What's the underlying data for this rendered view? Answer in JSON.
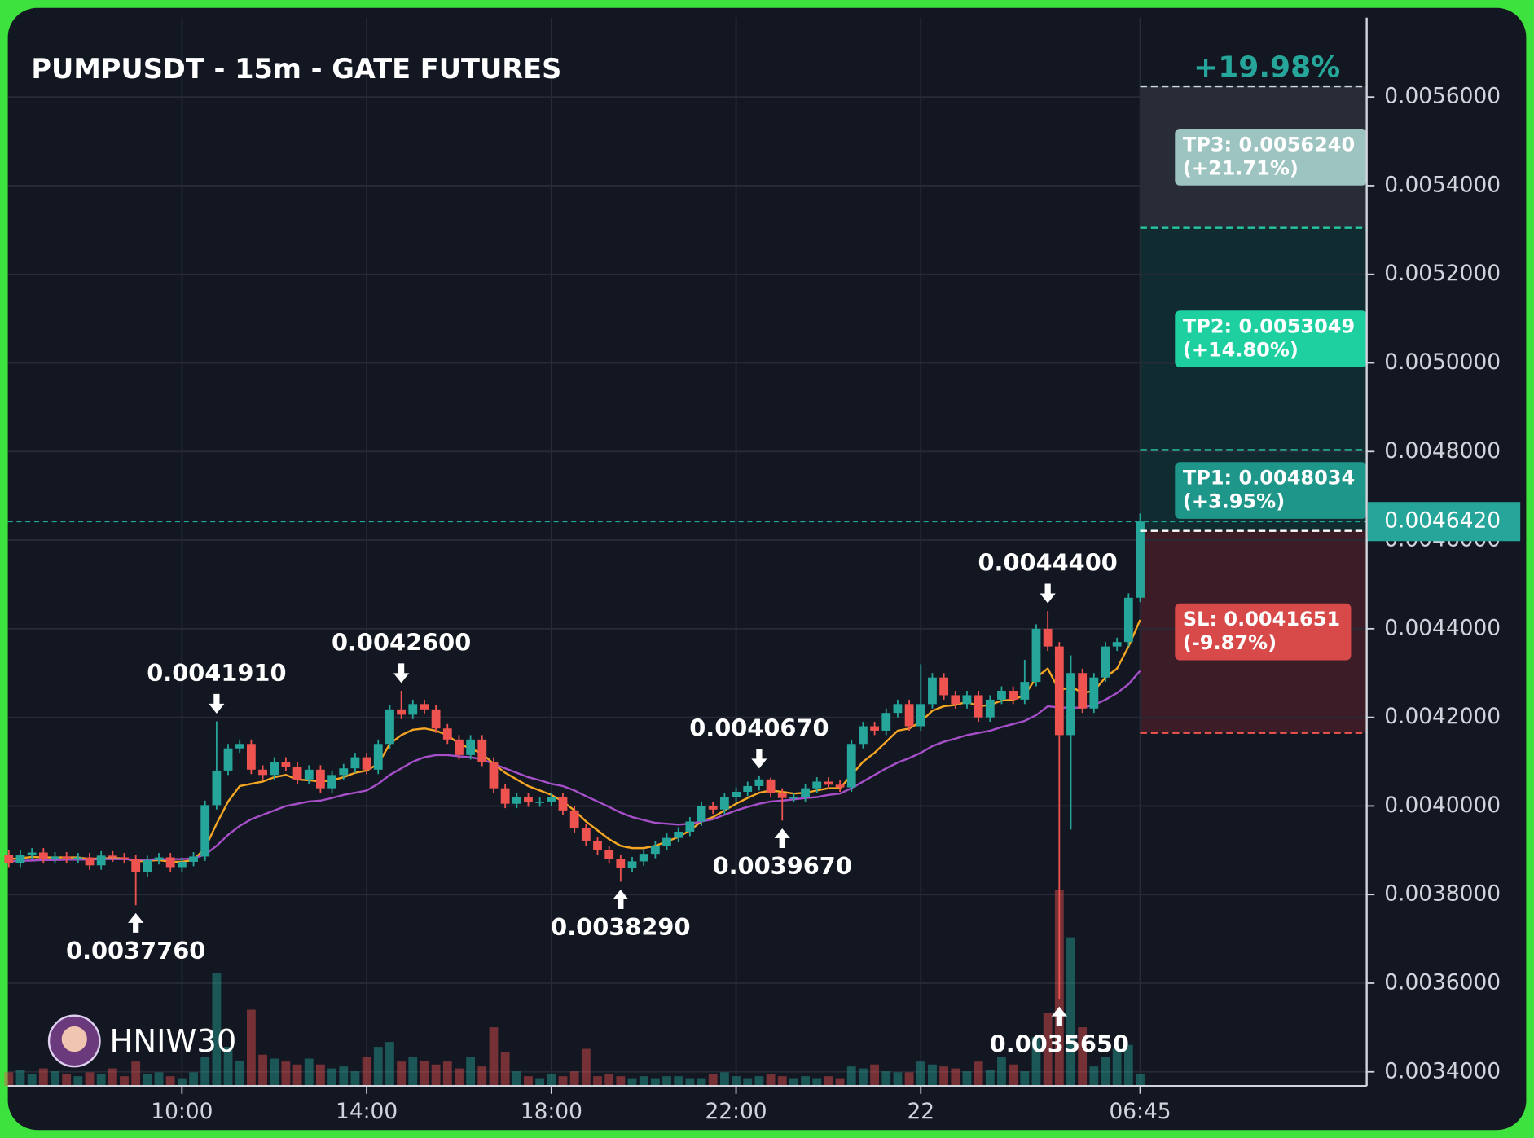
{
  "chart_data": {
    "type": "candlestick",
    "title": "PUMPUSDT - 15m - GATE FUTURES",
    "watermark": "HNIW30",
    "up_color": "#26a69a",
    "down_color": "#ef5350",
    "grid": true,
    "ylim": [
      0.003368,
      0.005779
    ],
    "yticks": [
      {
        "value": 0.0034,
        "label": "0.0034000"
      },
      {
        "value": 0.0036,
        "label": "0.0036000"
      },
      {
        "value": 0.0038,
        "label": "0.0038000"
      },
      {
        "value": 0.004,
        "label": "0.0040000"
      },
      {
        "value": 0.0042,
        "label": "0.0042000"
      },
      {
        "value": 0.0044,
        "label": "0.0044000"
      },
      {
        "value": 0.0046,
        "label": "0.0046000"
      },
      {
        "value": 0.0048,
        "label": "0.0048000"
      },
      {
        "value": 0.005,
        "label": "0.0050000"
      },
      {
        "value": 0.0052,
        "label": "0.0052000"
      },
      {
        "value": 0.0054,
        "label": "0.0054000"
      },
      {
        "value": 0.0056,
        "label": "0.0056000"
      }
    ],
    "categories": [
      null,
      null,
      null,
      null,
      null,
      null,
      null,
      null,
      null,
      null,
      null,
      null,
      null,
      null,
      null,
      "10:00",
      null,
      null,
      null,
      null,
      null,
      null,
      null,
      null,
      null,
      null,
      null,
      null,
      null,
      null,
      null,
      "14:00",
      null,
      null,
      null,
      null,
      null,
      null,
      null,
      null,
      null,
      null,
      null,
      null,
      null,
      null,
      null,
      "18:00",
      null,
      null,
      null,
      null,
      null,
      null,
      null,
      null,
      null,
      null,
      null,
      null,
      null,
      null,
      null,
      "22:00",
      null,
      null,
      null,
      null,
      null,
      null,
      null,
      null,
      null,
      null,
      null,
      null,
      null,
      null,
      null,
      "22",
      null,
      null,
      null,
      null,
      null,
      null,
      null,
      null,
      null,
      null,
      null,
      null,
      null,
      null,
      null,
      null,
      null,
      null,
      "06:45"
    ],
    "open": [
      0.00389,
      0.003872,
      0.00389,
      0.003895,
      0.00388,
      0.003886,
      0.003882,
      0.003884,
      0.003866,
      0.003888,
      0.003884,
      0.00388,
      0.00385,
      0.003878,
      0.003884,
      0.003862,
      0.003874,
      0.003886,
      0.004002,
      0.00408,
      0.00413,
      0.00414,
      0.004082,
      0.00407,
      0.0041,
      0.004088,
      0.00406,
      0.004082,
      0.00404,
      0.00407,
      0.004085,
      0.00411,
      0.004082,
      0.00414,
      0.004218,
      0.004206,
      0.00423,
      0.004218,
      0.004175,
      0.00415,
      0.004115,
      0.00415,
      0.0041,
      0.00404,
      0.004005,
      0.00402,
      0.004008,
      0.00401,
      0.00402,
      0.00399,
      0.00395,
      0.00392,
      0.0039,
      0.00388,
      0.00386,
      0.003875,
      0.003892,
      0.00391,
      0.003928,
      0.003942,
      0.003965,
      0.004,
      0.003992,
      0.00402,
      0.004032,
      0.004045,
      0.00406,
      0.00403,
      0.004018,
      0.00402,
      0.00404,
      0.004055,
      0.004048,
      0.004042,
      0.00414,
      0.00418,
      0.00417,
      0.00421,
      0.00423,
      0.00418,
      0.00423,
      0.00429,
      0.00425,
      0.00423,
      0.00425,
      0.0042,
      0.00424,
      0.00426,
      0.00424,
      0.00428,
      0.0044,
      0.00436,
      0.00416,
      0.0043,
      0.00422,
      0.00429,
      0.00436,
      0.00437,
      0.00447
    ],
    "high": [
      0.0039,
      0.0039,
      0.003905,
      0.003905,
      0.003896,
      0.003896,
      0.003894,
      0.003894,
      0.003898,
      0.003898,
      0.003894,
      0.00389,
      0.003888,
      0.003894,
      0.003894,
      0.003884,
      0.003896,
      0.004012,
      0.004191,
      0.00414,
      0.00415,
      0.00415,
      0.004092,
      0.00411,
      0.00411,
      0.004098,
      0.004092,
      0.004092,
      0.00408,
      0.004095,
      0.00412,
      0.00412,
      0.00415,
      0.004228,
      0.00426,
      0.00424,
      0.00424,
      0.004228,
      0.004185,
      0.00416,
      0.00416,
      0.00416,
      0.00411,
      0.00405,
      0.00403,
      0.00403,
      0.00402,
      0.00403,
      0.00403,
      0.004,
      0.00396,
      0.00393,
      0.00391,
      0.00389,
      0.003885,
      0.003902,
      0.00392,
      0.003938,
      0.003952,
      0.003975,
      0.00401,
      0.00401,
      0.00403,
      0.004042,
      0.004055,
      0.004067,
      0.004064,
      0.00404,
      0.00403,
      0.00405,
      0.004065,
      0.004065,
      0.004058,
      0.00415,
      0.00419,
      0.00419,
      0.00422,
      0.00424,
      0.00424,
      0.00432,
      0.0043,
      0.0043,
      0.00426,
      0.00426,
      0.00426,
      0.00425,
      0.00427,
      0.00427,
      0.00433,
      0.00441,
      0.00444,
      0.00437,
      0.00434,
      0.00431,
      0.0043,
      0.00437,
      0.00438,
      0.00448,
      0.00466
    ],
    "low": [
      0.003862,
      0.003862,
      0.00388,
      0.00387,
      0.00387,
      0.003872,
      0.003872,
      0.003856,
      0.003856,
      0.003874,
      0.00387,
      0.003776,
      0.00384,
      0.003868,
      0.003852,
      0.003852,
      0.003864,
      0.003876,
      0.003992,
      0.00407,
      0.00412,
      0.004072,
      0.00406,
      0.00406,
      0.004078,
      0.00405,
      0.00405,
      0.00403,
      0.00403,
      0.00406,
      0.004075,
      0.004072,
      0.004072,
      0.00413,
      0.004196,
      0.004196,
      0.004208,
      0.004165,
      0.00414,
      0.004105,
      0.004105,
      0.00409,
      0.00403,
      0.003995,
      0.003995,
      0.003998,
      0.003998,
      0.004,
      0.00398,
      0.00394,
      0.00391,
      0.00389,
      0.00387,
      0.003829,
      0.00385,
      0.003865,
      0.003882,
      0.0039,
      0.003918,
      0.003932,
      0.003955,
      0.003982,
      0.003982,
      0.00401,
      0.004022,
      0.004035,
      0.00402,
      0.003967,
      0.004008,
      0.00401,
      0.00403,
      0.004038,
      0.004032,
      0.004032,
      0.00413,
      0.00416,
      0.00416,
      0.0042,
      0.00417,
      0.00417,
      0.00422,
      0.00424,
      0.00422,
      0.00422,
      0.00419,
      0.00419,
      0.00423,
      0.00423,
      0.00423,
      0.00427,
      0.00435,
      0.003565,
      0.003947,
      0.00421,
      0.00421,
      0.00428,
      0.00435,
      0.00436,
      0.00446
    ],
    "close": [
      0.003872,
      0.00389,
      0.003895,
      0.00388,
      0.003886,
      0.003882,
      0.003884,
      0.003866,
      0.003888,
      0.003884,
      0.00388,
      0.00385,
      0.003878,
      0.003884,
      0.003862,
      0.003874,
      0.003886,
      0.004002,
      0.00408,
      0.00413,
      0.00414,
      0.004082,
      0.00407,
      0.0041,
      0.004088,
      0.00406,
      0.004082,
      0.00404,
      0.00407,
      0.004085,
      0.00411,
      0.004082,
      0.00414,
      0.004218,
      0.004206,
      0.00423,
      0.004218,
      0.004175,
      0.00415,
      0.004115,
      0.00415,
      0.0041,
      0.00404,
      0.004005,
      0.00402,
      0.004008,
      0.00401,
      0.00402,
      0.00399,
      0.00395,
      0.00392,
      0.0039,
      0.00388,
      0.00386,
      0.003875,
      0.003892,
      0.00391,
      0.003928,
      0.003942,
      0.003965,
      0.004,
      0.003992,
      0.00402,
      0.004032,
      0.004045,
      0.00406,
      0.00403,
      0.004018,
      0.00402,
      0.00404,
      0.004055,
      0.004048,
      0.004042,
      0.00414,
      0.00418,
      0.00417,
      0.00421,
      0.00423,
      0.00418,
      0.00423,
      0.00429,
      0.00425,
      0.00423,
      0.00425,
      0.0042,
      0.00424,
      0.00426,
      0.00424,
      0.00428,
      0.0044,
      0.00436,
      0.00416,
      0.0043,
      0.00422,
      0.00429,
      0.00436,
      0.00437,
      0.00447,
      0.004642
    ],
    "volume": [
      14,
      16,
      12,
      18,
      15,
      12,
      10,
      14,
      12,
      18,
      10,
      25,
      12,
      14,
      10,
      8,
      14,
      30,
      115,
      40,
      26,
      78,
      32,
      28,
      25,
      22,
      28,
      22,
      18,
      20,
      15,
      30,
      40,
      45,
      25,
      30,
      26,
      22,
      25,
      18,
      30,
      20,
      60,
      35,
      15,
      10,
      8,
      12,
      10,
      15,
      38,
      10,
      12,
      10,
      8,
      10,
      8,
      10,
      10,
      8,
      8,
      12,
      14,
      10,
      8,
      10,
      12,
      10,
      8,
      10,
      8,
      10,
      8,
      20,
      18,
      22,
      15,
      14,
      14,
      25,
      22,
      20,
      18,
      15,
      25,
      16,
      30,
      22,
      15,
      50,
      75,
      200,
      152,
      60,
      20,
      30,
      38,
      42,
      12
    ],
    "lines": [
      {
        "color": "#f5a623",
        "values": [
          0.00388,
          0.003882,
          0.003885,
          0.003884,
          0.003884,
          0.003884,
          0.003884,
          0.00388,
          0.003882,
          0.003882,
          0.003882,
          0.003875,
          0.003876,
          0.003878,
          0.003874,
          0.003874,
          0.003878,
          0.003905,
          0.00396,
          0.00401,
          0.004045,
          0.00405,
          0.004055,
          0.004065,
          0.00407,
          0.00406,
          0.004058,
          0.004055,
          0.004058,
          0.004065,
          0.004075,
          0.00408,
          0.004095,
          0.00414,
          0.00416,
          0.004172,
          0.004175,
          0.00417,
          0.00416,
          0.00414,
          0.00413,
          0.004118,
          0.004095,
          0.004075,
          0.00406,
          0.004045,
          0.004035,
          0.004025,
          0.00401,
          0.00399,
          0.003965,
          0.003945,
          0.003925,
          0.00391,
          0.003905,
          0.003905,
          0.00391,
          0.00392,
          0.00393,
          0.003945,
          0.003965,
          0.003975,
          0.00399,
          0.004005,
          0.004018,
          0.00403,
          0.004035,
          0.004032,
          0.004028,
          0.00403,
          0.004035,
          0.00404,
          0.00404,
          0.00407,
          0.0041,
          0.00412,
          0.004145,
          0.00417,
          0.004175,
          0.00419,
          0.004215,
          0.004225,
          0.004228,
          0.004235,
          0.004225,
          0.004228,
          0.004238,
          0.00424,
          0.00425,
          0.00429,
          0.00431,
          0.00426,
          0.00427,
          0.004255,
          0.00426,
          0.00429,
          0.00431,
          0.00436,
          0.00442
        ]
      },
      {
        "color": "#a64fc9",
        "values": [
          0.003875,
          0.003876,
          0.003877,
          0.003878,
          0.003878,
          0.003879,
          0.003879,
          0.003879,
          0.00388,
          0.00388,
          0.00388,
          0.003879,
          0.003879,
          0.00388,
          0.00388,
          0.00388,
          0.003882,
          0.00389,
          0.00391,
          0.003935,
          0.003955,
          0.00397,
          0.00398,
          0.00399,
          0.004,
          0.004005,
          0.00401,
          0.004012,
          0.004018,
          0.004025,
          0.00403,
          0.004035,
          0.00405,
          0.00407,
          0.004085,
          0.0041,
          0.00411,
          0.004115,
          0.004115,
          0.004112,
          0.00411,
          0.004105,
          0.004095,
          0.004085,
          0.004075,
          0.004065,
          0.004058,
          0.00405,
          0.004045,
          0.004035,
          0.004022,
          0.00401,
          0.003998,
          0.003985,
          0.003975,
          0.003968,
          0.003962,
          0.00396,
          0.003958,
          0.00396,
          0.003965,
          0.00397,
          0.00398,
          0.00399,
          0.003998,
          0.004005,
          0.00401,
          0.004012,
          0.004015,
          0.004018,
          0.00402,
          0.004025,
          0.004028,
          0.00404,
          0.004055,
          0.00407,
          0.004085,
          0.004098,
          0.004108,
          0.00412,
          0.004135,
          0.004145,
          0.004152,
          0.00416,
          0.004165,
          0.00417,
          0.004178,
          0.004185,
          0.004192,
          0.004205,
          0.004225,
          0.004222,
          0.004222,
          0.004222,
          0.004228,
          0.00424,
          0.004255,
          0.004275,
          0.004305
        ]
      }
    ],
    "annotations": [
      {
        "label": "0.0037760",
        "value": 0.003776,
        "candle": 11,
        "side": "low"
      },
      {
        "label": "0.0041910",
        "value": 0.004191,
        "candle": 18,
        "side": "high"
      },
      {
        "label": "0.0042600",
        "value": 0.00426,
        "candle": 34,
        "side": "high"
      },
      {
        "label": "0.0038290",
        "value": 0.003829,
        "candle": 53,
        "side": "low"
      },
      {
        "label": "0.0040670",
        "value": 0.004067,
        "candle": 65,
        "side": "high"
      },
      {
        "label": "0.0039670",
        "value": 0.003967,
        "candle": 67,
        "side": "low"
      },
      {
        "label": "0.0044400",
        "value": 0.00444,
        "candle": 90,
        "side": "high"
      },
      {
        "label": "0.0035650",
        "value": 0.003565,
        "candle": 91,
        "side": "low"
      }
    ],
    "last_price": {
      "value": 0.004642,
      "label": "0.0046420",
      "color": "#26a69a"
    },
    "position": {
      "change_label": "+19.98%",
      "entry": 0.004621,
      "targets": [
        {
          "label": "TP1: 0.0048034",
          "change": "(+3.95%)",
          "value": 0.0048034,
          "color": "#1f968a",
          "line_color": "#26c6a0"
        },
        {
          "label": "TP2: 0.0053049",
          "change": "(+14.80%)",
          "value": 0.0053049,
          "color": "#1ecfa0",
          "line_color": "#26c6a0"
        },
        {
          "label": "TP3: 0.0056240",
          "change": "(+21.71%)",
          "value": 0.005624,
          "color": "#9dc4c0",
          "line_color": "#cfd8dc"
        }
      ],
      "stop": {
        "label": "SL: 0.0041651",
        "change": "(-9.87%)",
        "value": 0.0041651,
        "color": "#d84a4a",
        "line_color": "#ef5350"
      }
    }
  }
}
